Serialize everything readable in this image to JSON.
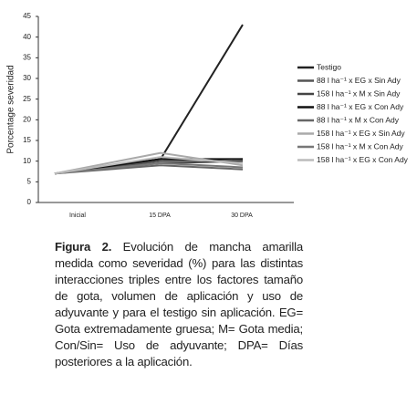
{
  "chart_data": {
    "type": "line",
    "y_label": "Porcentage severidad",
    "categories": [
      "Inicial",
      "15 DPA",
      "30 DPA"
    ],
    "ylim": [
      0,
      45
    ],
    "yticks": [
      0,
      5,
      10,
      15,
      20,
      25,
      30,
      35,
      40,
      45
    ],
    "series": [
      {
        "name": "Testigo",
        "color": "#222222",
        "values": [
          7,
          10.5,
          43
        ]
      },
      {
        "name": "88 l ha⁻¹ x EG x Sin Ady",
        "color": "#555555",
        "values": [
          7,
          10,
          10.5
        ]
      },
      {
        "name": "158 l ha⁻¹ x M x Sin Ady",
        "color": "#444444",
        "values": [
          7,
          9.5,
          10
        ]
      },
      {
        "name": "88 l ha⁻¹ x EG x Con Ady",
        "color": "#111111",
        "values": [
          7,
          10.5,
          10.5
        ]
      },
      {
        "name": "88 l ha⁻¹ x M x Con Ady",
        "color": "#666666",
        "values": [
          7,
          9,
          8
        ]
      },
      {
        "name": "158 l ha⁻¹ x EG x Sin Ady",
        "color": "#aaaaaa",
        "values": [
          7,
          12,
          9
        ]
      },
      {
        "name": "158 l ha⁻¹ x M x Con Ady",
        "color": "#777777",
        "values": [
          7,
          9.5,
          8.5
        ]
      },
      {
        "name": "158 l ha⁻¹ x EG x Con Ady",
        "color": "#bbbbbb",
        "values": [
          7,
          11,
          9.5
        ]
      }
    ],
    "caption_title": "Figura 2.",
    "caption": "Evolución de mancha amarilla medida como severidad (%) para las distintas interacciones triples entre los factores tamaño de gota, volumen de aplicación y uso de adyuvante y para el testigo sin aplicación. EG= Gota extremadamente gruesa; M= Gota media; Con/Sin= Uso de adyuvante; DPA= Días posteriores a la aplicación."
  }
}
